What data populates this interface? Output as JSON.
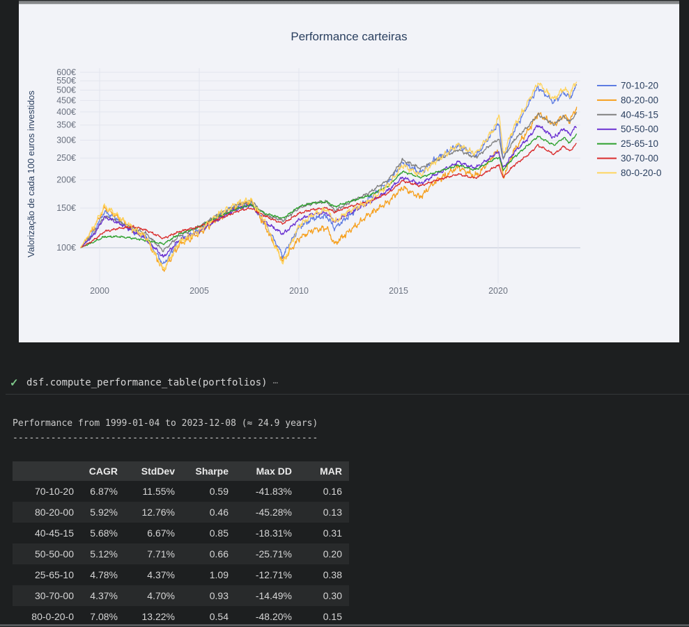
{
  "figure": {
    "bg": "#f2f3f8",
    "grid_color": "#e3e5ee",
    "baseline_color": "#d0d4df",
    "title_color": "#2a3f5f",
    "tick_color": "#6b7280"
  },
  "chart_data": {
    "type": "line",
    "title": "Performance carteiras",
    "xlabel": "",
    "ylabel": "Valorização de cada 100 euros investidos",
    "y_scale": "log",
    "grid": true,
    "legend_position": "top-right-outside",
    "x_range": [
      1999.04,
      2023.94
    ],
    "y_tick_values": [
      100,
      150,
      200,
      250,
      300,
      350,
      400,
      450,
      500,
      550,
      600
    ],
    "y_tick_labels": [
      "100€",
      "150€",
      "200€",
      "250€",
      "300€",
      "350€",
      "400€",
      "450€",
      "500€",
      "550€",
      "600€"
    ],
    "x_tick_values": [
      2000,
      2005,
      2010,
      2015,
      2020
    ],
    "x_tick_labels": [
      "2000",
      "2005",
      "2010",
      "2015",
      "2020"
    ],
    "x": [
      1999.04,
      1999.7,
      2000.25,
      2001.0,
      2001.7,
      2002.3,
      2003.2,
      2004.0,
      2005.0,
      2006.0,
      2007.0,
      2007.6,
      2008.3,
      2009.2,
      2010.0,
      2010.7,
      2011.4,
      2011.8,
      2012.5,
      2013.5,
      2014.5,
      2015.2,
      2016.1,
      2016.8,
      2018.0,
      2018.8,
      2019.0,
      2019.9,
      2020.05,
      2020.25,
      2020.8,
      2021.5,
      2022.0,
      2022.8,
      2023.3,
      2023.6,
      2023.94
    ],
    "series": [
      {
        "name": "70-10-20",
        "color": "#5e7ce2",
        "stddev": 11.55,
        "values": [
          100,
          118,
          145,
          132,
          118,
          112,
          84,
          108,
          120,
          140,
          155,
          158,
          128,
          92,
          123,
          135,
          138,
          122,
          138,
          165,
          195,
          238,
          215,
          245,
          285,
          258,
          262,
          345,
          350,
          245,
          330,
          430,
          515,
          440,
          490,
          462,
          523
        ]
      },
      {
        "name": "80-20-00",
        "color": "#f6a01e",
        "stddev": 12.76,
        "values": [
          100,
          122,
          150,
          135,
          120,
          112,
          79,
          103,
          116,
          136,
          154,
          160,
          125,
          87,
          110,
          120,
          122,
          104,
          118,
          140,
          160,
          185,
          168,
          195,
          228,
          208,
          212,
          265,
          268,
          205,
          270,
          330,
          395,
          352,
          385,
          365,
          419
        ]
      },
      {
        "name": "40-45-15",
        "color": "#7f7f7f",
        "stddev": 6.67,
        "values": [
          100,
          115,
          138,
          130,
          122,
          116,
          97,
          113,
          124,
          141,
          156,
          161,
          140,
          132,
          150,
          158,
          160,
          146,
          158,
          175,
          200,
          245,
          225,
          242,
          272,
          252,
          256,
          300,
          302,
          248,
          300,
          345,
          390,
          352,
          382,
          362,
          396
        ]
      },
      {
        "name": "50-50-00",
        "color": "#6a31d1",
        "stddev": 7.71,
        "values": [
          100,
          114,
          137,
          128,
          118,
          110,
          91,
          108,
          118,
          135,
          150,
          155,
          130,
          115,
          133,
          141,
          143,
          130,
          142,
          158,
          180,
          205,
          192,
          210,
          240,
          226,
          230,
          262,
          264,
          225,
          265,
          305,
          350,
          308,
          338,
          318,
          347
        ]
      },
      {
        "name": "25-65-10",
        "color": "#2ca02c",
        "stddev": 4.37,
        "values": [
          100,
          106,
          112,
          112,
          110,
          108,
          104,
          115,
          124,
          138,
          150,
          155,
          142,
          135,
          152,
          158,
          160,
          152,
          160,
          170,
          188,
          218,
          205,
          215,
          232,
          222,
          225,
          250,
          252,
          222,
          252,
          285,
          312,
          285,
          308,
          292,
          320
        ]
      },
      {
        "name": "30-70-00",
        "color": "#d92b2b",
        "stddev": 4.7,
        "values": [
          100,
          108,
          118,
          122,
          124,
          120,
          110,
          118,
          124,
          134,
          146,
          150,
          138,
          128,
          142,
          148,
          150,
          144,
          152,
          160,
          175,
          198,
          188,
          198,
          212,
          204,
          206,
          230,
          232,
          205,
          232,
          258,
          285,
          260,
          282,
          268,
          290
        ]
      },
      {
        "name": "80-0-20-0",
        "color": "#fed45f",
        "stddev": 13.22,
        "values": [
          100,
          124,
          153,
          137,
          121,
          113,
          80,
          106,
          119,
          142,
          158,
          163,
          130,
          85,
          125,
          140,
          148,
          130,
          145,
          160,
          190,
          232,
          210,
          240,
          285,
          262,
          268,
          350,
          398,
          258,
          345,
          440,
          540,
          455,
          510,
          478,
          549
        ]
      }
    ]
  },
  "cell": {
    "status": "success",
    "code": "dsf.compute_performance_table(portfolios)",
    "check_glyph": "✓",
    "collapsed_glyph": "⋯"
  },
  "output": {
    "header_line": "Performance from 1999-01-04 to 2023-12-08 (≈ 24.9 years)",
    "divider_line": "--------------------------------------------------------",
    "table": {
      "columns": [
        "",
        "CAGR",
        "StdDev",
        "Sharpe",
        "Max DD",
        "MAR"
      ],
      "rows": [
        [
          "70-10-20",
          "6.87%",
          "11.55%",
          "0.59",
          "-41.83%",
          "0.16"
        ],
        [
          "80-20-00",
          "5.92%",
          "12.76%",
          "0.46",
          "-45.28%",
          "0.13"
        ],
        [
          "40-45-15",
          "5.68%",
          "6.67%",
          "0.85",
          "-18.31%",
          "0.31"
        ],
        [
          "50-50-00",
          "5.12%",
          "7.71%",
          "0.66",
          "-25.71%",
          "0.20"
        ],
        [
          "25-65-10",
          "4.78%",
          "4.37%",
          "1.09",
          "-12.71%",
          "0.38"
        ],
        [
          "30-70-00",
          "4.37%",
          "4.70%",
          "0.93",
          "-14.49%",
          "0.30"
        ],
        [
          "80-0-20-0",
          "7.08%",
          "13.22%",
          "0.54",
          "-48.20%",
          "0.15"
        ]
      ]
    }
  }
}
